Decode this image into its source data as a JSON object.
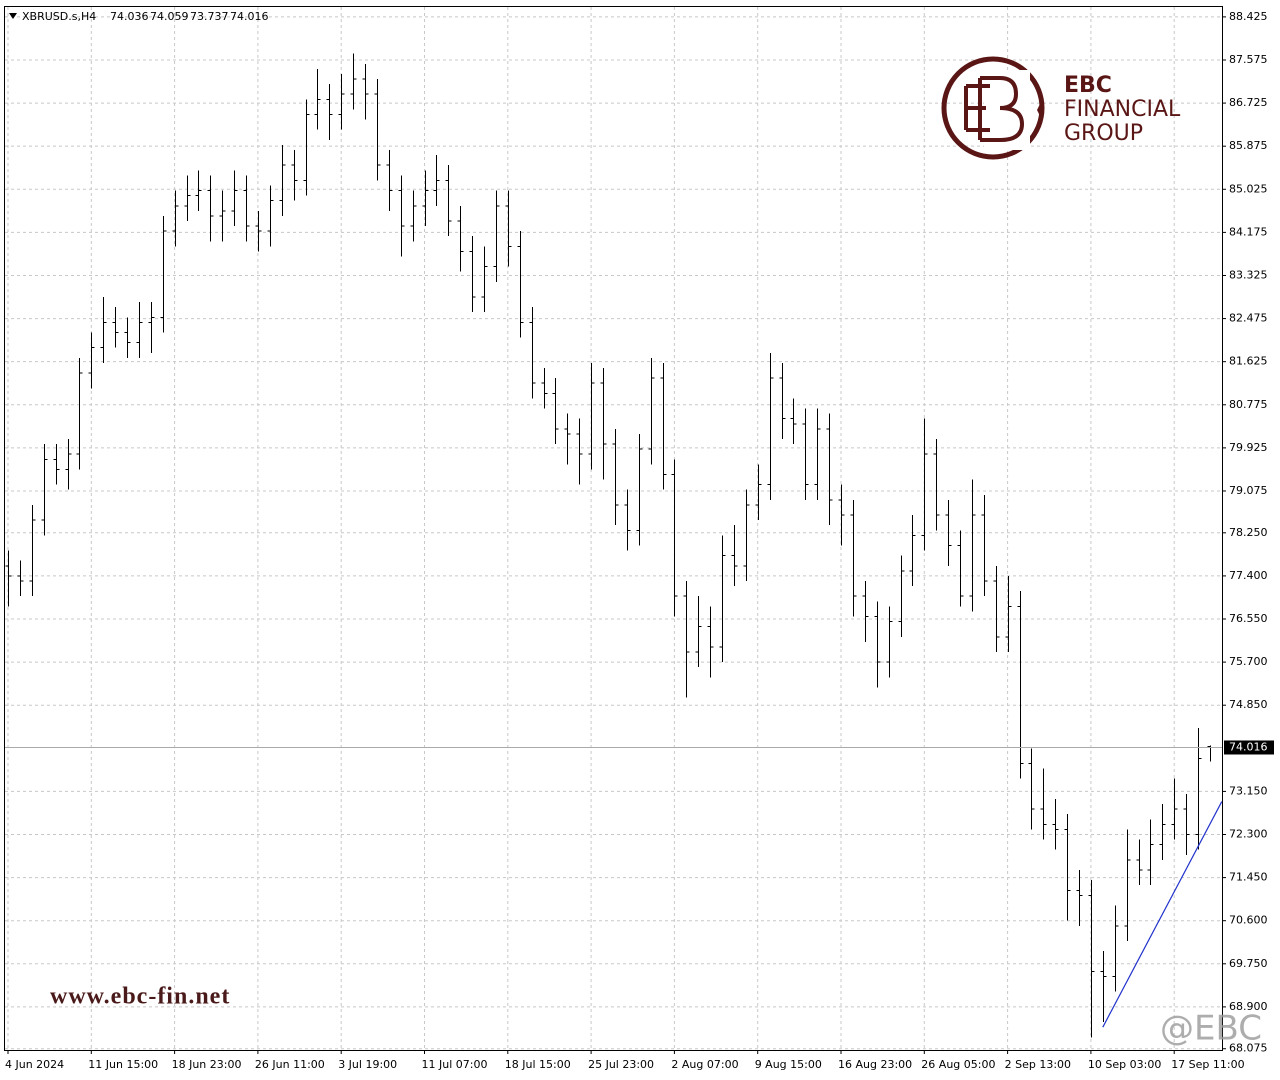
{
  "chart_data": {
    "type": "ohlc",
    "symbol": "XBRUSD.s,H4",
    "color": "#000000",
    "grid": true,
    "categories": [
      "4 Jun 2024",
      null,
      null,
      null,
      null,
      null,
      null,
      "11 Jun 15:00",
      null,
      null,
      null,
      null,
      null,
      null,
      "18 Jun 23:00",
      null,
      null,
      null,
      null,
      null,
      null,
      "26 Jun 11:00",
      null,
      null,
      null,
      null,
      null,
      null,
      "3 Jul 19:00",
      null,
      null,
      null,
      null,
      null,
      null,
      "11 Jul 07:00",
      null,
      null,
      null,
      null,
      null,
      null,
      "18 Jul 15:00",
      null,
      null,
      null,
      null,
      null,
      null,
      "25 Jul 23:00",
      null,
      null,
      null,
      null,
      null,
      null,
      "2 Aug 07:00",
      null,
      null,
      null,
      null,
      null,
      null,
      "9 Aug 15:00",
      null,
      null,
      null,
      null,
      null,
      null,
      "16 Aug 23:00",
      null,
      null,
      null,
      null,
      null,
      null,
      "26 Aug 05:00",
      null,
      null,
      null,
      null,
      null,
      null,
      "2 Sep 13:00",
      null,
      null,
      null,
      null,
      null,
      null,
      "10 Sep 03:00",
      null,
      null,
      null,
      null,
      null,
      null,
      "17 Sep 11:00",
      null,
      null,
      null
    ],
    "open": [
      77.6,
      77.4,
      77.3,
      78.5,
      79.7,
      79.5,
      79.8,
      81.4,
      81.9,
      82.4,
      82.2,
      82.0,
      82.4,
      82.5,
      84.2,
      84.7,
      84.9,
      85.0,
      84.5,
      84.6,
      85.0,
      84.3,
      84.2,
      84.8,
      85.5,
      85.2,
      86.5,
      86.8,
      86.5,
      86.9,
      87.2,
      86.9,
      85.5,
      85.0,
      84.3,
      84.7,
      85.0,
      85.2,
      84.4,
      83.8,
      82.9,
      83.5,
      84.7,
      83.9,
      82.4,
      81.2,
      81.0,
      80.3,
      80.2,
      79.8,
      81.2,
      80.0,
      78.8,
      78.3,
      79.9,
      81.3,
      79.4,
      77.0,
      75.9,
      76.4,
      76.0,
      77.8,
      77.6,
      78.8,
      79.2,
      81.3,
      80.5,
      80.4,
      79.2,
      80.3,
      78.9,
      78.6,
      77.0,
      76.6,
      75.7,
      76.5,
      77.5,
      78.2,
      79.8,
      78.6,
      78.0,
      77.0,
      78.6,
      77.3,
      76.2,
      76.8,
      73.7,
      72.8,
      72.5,
      72.4,
      71.2,
      71.1,
      69.6,
      69.5,
      70.5,
      71.8,
      71.6,
      72.1,
      72.5,
      72.8,
      72.3,
      74.036
    ],
    "high": [
      77.9,
      77.7,
      78.8,
      80.0,
      80.0,
      80.1,
      81.7,
      82.2,
      82.9,
      82.7,
      82.5,
      82.8,
      82.8,
      84.5,
      85.0,
      85.3,
      85.4,
      85.3,
      85.0,
      85.4,
      85.3,
      84.6,
      85.1,
      85.9,
      85.8,
      86.8,
      87.4,
      87.1,
      87.3,
      87.7,
      87.5,
      87.2,
      85.8,
      85.3,
      85.0,
      85.4,
      85.7,
      85.5,
      84.7,
      84.1,
      83.9,
      85.0,
      85.0,
      84.2,
      82.7,
      81.5,
      81.3,
      80.6,
      80.5,
      81.6,
      81.5,
      80.3,
      79.1,
      80.2,
      81.7,
      81.6,
      79.7,
      77.3,
      77.0,
      76.8,
      78.2,
      78.4,
      79.1,
      79.6,
      81.8,
      81.6,
      80.9,
      80.7,
      80.7,
      80.6,
      79.2,
      78.9,
      77.3,
      76.9,
      76.8,
      77.8,
      78.6,
      80.5,
      80.1,
      78.9,
      78.3,
      79.3,
      79.0,
      77.6,
      77.4,
      77.1,
      74.0,
      73.6,
      73.0,
      72.7,
      71.6,
      71.4,
      70.0,
      70.9,
      72.4,
      72.2,
      72.6,
      72.9,
      73.4,
      73.1,
      74.4,
      74.059
    ],
    "low": [
      76.8,
      77.0,
      77.0,
      78.2,
      79.2,
      79.1,
      79.5,
      81.1,
      81.6,
      81.9,
      81.7,
      81.7,
      81.8,
      82.2,
      83.9,
      84.4,
      84.6,
      84.0,
      84.0,
      84.3,
      84.0,
      83.8,
      83.9,
      84.5,
      84.8,
      84.9,
      86.2,
      86.0,
      86.2,
      86.6,
      86.4,
      85.2,
      84.6,
      83.7,
      84.0,
      84.3,
      84.7,
      84.1,
      83.4,
      82.6,
      82.6,
      83.2,
      83.5,
      82.1,
      80.9,
      80.7,
      80.0,
      79.6,
      79.2,
      79.5,
      79.3,
      78.4,
      77.9,
      78.0,
      79.6,
      79.1,
      76.6,
      75.0,
      75.6,
      75.4,
      75.7,
      77.2,
      77.3,
      78.5,
      78.9,
      80.1,
      80.0,
      78.9,
      78.9,
      78.4,
      78.0,
      76.6,
      76.1,
      75.2,
      75.4,
      76.2,
      77.2,
      77.9,
      78.3,
      77.6,
      76.8,
      76.7,
      77.0,
      75.9,
      75.9,
      73.4,
      72.4,
      72.2,
      72.0,
      70.6,
      70.5,
      68.3,
      68.6,
      69.2,
      70.2,
      71.3,
      71.3,
      71.8,
      72.2,
      71.9,
      72.0,
      73.737
    ],
    "close": [
      77.4,
      77.3,
      78.5,
      79.7,
      79.5,
      79.8,
      81.4,
      81.9,
      82.4,
      82.2,
      82.0,
      82.4,
      82.5,
      84.2,
      84.7,
      84.9,
      85.0,
      84.5,
      84.6,
      85.0,
      84.3,
      84.2,
      84.8,
      85.5,
      85.2,
      86.5,
      86.8,
      86.5,
      86.9,
      87.2,
      86.9,
      85.5,
      85.0,
      84.3,
      84.7,
      85.0,
      85.2,
      84.4,
      83.8,
      82.9,
      83.5,
      84.7,
      83.9,
      82.4,
      81.2,
      81.0,
      80.3,
      80.2,
      79.8,
      81.2,
      80.0,
      78.8,
      78.3,
      79.9,
      81.3,
      79.4,
      77.0,
      75.9,
      76.4,
      76.0,
      77.8,
      77.6,
      78.8,
      79.2,
      81.3,
      80.5,
      80.4,
      79.2,
      80.3,
      78.9,
      78.6,
      77.0,
      76.6,
      75.7,
      76.5,
      77.5,
      78.2,
      79.8,
      78.6,
      78.0,
      77.0,
      78.6,
      77.3,
      76.2,
      76.8,
      73.7,
      72.8,
      72.5,
      72.4,
      71.2,
      71.1,
      69.6,
      69.5,
      70.5,
      71.8,
      71.6,
      72.1,
      72.5,
      72.8,
      72.3,
      73.8,
      74.016
    ],
    "ylim": [
      68.05,
      88.62
    ],
    "yticks": [
      {
        "value": 68.9,
        "label": "68.900"
      },
      68.075,
      {
        "value": 69.75,
        "label": "69.750"
      },
      {
        "value": 70.6,
        "label": "70.600"
      },
      {
        "value": 71.45,
        "label": "71.450"
      },
      {
        "value": 72.3,
        "label": "72.300"
      },
      {
        "value": 73.15,
        "label": "73.150"
      },
      {
        "value": 74.85,
        "label": "74.850"
      },
      {
        "value": 75.7,
        "label": "75.700"
      },
      {
        "value": 76.55,
        "label": "76.550"
      },
      {
        "value": 77.4,
        "label": "77.400"
      },
      {
        "value": 78.25,
        "label": "78.250"
      },
      79.075,
      79.925,
      80.775,
      81.625,
      82.475,
      83.325,
      84.175,
      85.025,
      85.875,
      86.725,
      87.575,
      88.425
    ],
    "trendline": {
      "start_index": 92,
      "start_value": 68.5,
      "end_index": 102,
      "end_value": 72.95,
      "color": "#2233cc"
    }
  },
  "logo": {
    "line1": "EBC",
    "line2": "FINANCIAL",
    "line3": "GROUP",
    "url": "www.ebc-fin.net",
    "handle": "@EBC"
  }
}
